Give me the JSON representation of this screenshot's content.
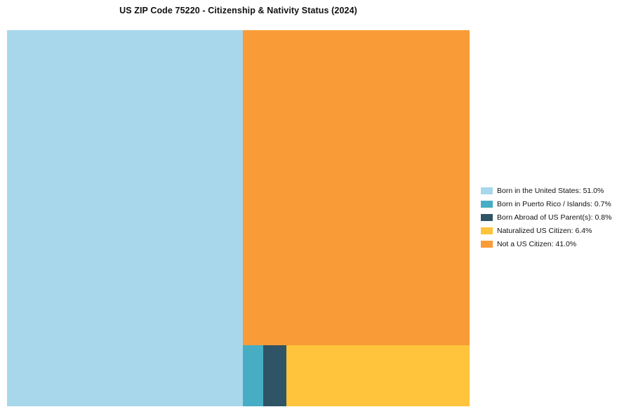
{
  "chart_data": {
    "type": "treemap",
    "title": "US ZIP Code 75220 - Citizenship & Nativity Status (2024)",
    "unit": "%",
    "legend_position": "right",
    "grid": false,
    "segments": [
      {
        "label": "Born in the United States",
        "value": 51.0,
        "color": "#A8D7EB"
      },
      {
        "label": "Born in Puerto Rico / Islands",
        "value": 0.7,
        "color": "#47ADC4"
      },
      {
        "label": "Born Abroad of US Parent(s)",
        "value": 0.8,
        "color": "#2F5466"
      },
      {
        "label": "Naturalized US Citizen",
        "value": 6.4,
        "color": "#FFC43B"
      },
      {
        "label": "Not a US Citizen",
        "value": 41.0,
        "color": "#F99C38"
      }
    ],
    "legend_order": [
      0,
      1,
      2,
      3,
      4
    ]
  }
}
